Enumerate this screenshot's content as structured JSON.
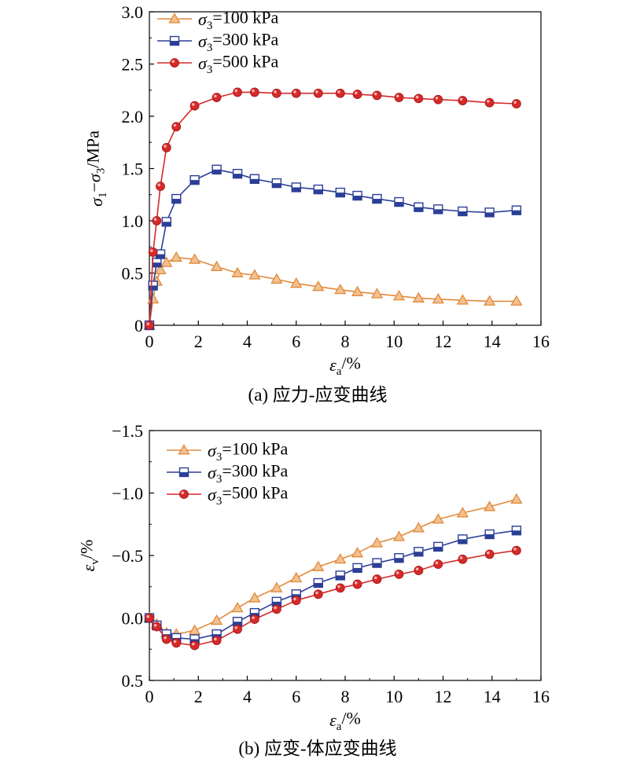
{
  "chart_data": [
    {
      "type": "line",
      "caption": "(a) 应力-应变曲线",
      "xlabel": "εa/%",
      "ylabel": "σ1−σ3/MPa",
      "xlim": [
        0,
        16
      ],
      "ylim": [
        0,
        3.0
      ],
      "y_reversed": false,
      "xticks": [
        "0",
        "2",
        "4",
        "6",
        "8",
        "10",
        "12",
        "14",
        "16"
      ],
      "yticks": [
        "0",
        "0.5",
        "1.0",
        "1.5",
        "2.0",
        "2.5",
        "3.0"
      ],
      "legend_position": "top-left",
      "series": [
        {
          "name": "σ3=100 kPa",
          "color": "#e08a3c",
          "marker": "triangle-open",
          "points": [
            [
              0,
              0
            ],
            [
              0.15,
              0.25
            ],
            [
              0.3,
              0.42
            ],
            [
              0.45,
              0.53
            ],
            [
              0.7,
              0.6
            ],
            [
              1.1,
              0.65
            ],
            [
              1.85,
              0.63
            ],
            [
              2.75,
              0.56
            ],
            [
              3.6,
              0.5
            ],
            [
              4.3,
              0.48
            ],
            [
              5.2,
              0.44
            ],
            [
              6.0,
              0.4
            ],
            [
              6.9,
              0.37
            ],
            [
              7.8,
              0.34
            ],
            [
              8.5,
              0.32
            ],
            [
              9.3,
              0.3
            ],
            [
              10.2,
              0.28
            ],
            [
              11.0,
              0.26
            ],
            [
              11.8,
              0.25
            ],
            [
              12.8,
              0.24
            ],
            [
              13.9,
              0.23
            ],
            [
              15.0,
              0.23
            ]
          ]
        },
        {
          "name": "σ3=300 kPa",
          "color": "#2b3f97",
          "marker": "square-half",
          "points": [
            [
              0,
              0
            ],
            [
              0.15,
              0.38
            ],
            [
              0.3,
              0.6
            ],
            [
              0.45,
              0.68
            ],
            [
              0.7,
              0.99
            ],
            [
              1.1,
              1.21
            ],
            [
              1.85,
              1.39
            ],
            [
              2.75,
              1.49
            ],
            [
              3.6,
              1.45
            ],
            [
              4.3,
              1.4
            ],
            [
              5.2,
              1.36
            ],
            [
              6.0,
              1.32
            ],
            [
              6.9,
              1.3
            ],
            [
              7.8,
              1.27
            ],
            [
              8.5,
              1.24
            ],
            [
              9.3,
              1.21
            ],
            [
              10.2,
              1.18
            ],
            [
              11.0,
              1.13
            ],
            [
              11.8,
              1.11
            ],
            [
              12.8,
              1.09
            ],
            [
              13.9,
              1.08
            ],
            [
              15.0,
              1.1
            ]
          ]
        },
        {
          "name": "σ3=500 kPa",
          "color": "#d42a2a",
          "marker": "circle-filled",
          "points": [
            [
              0,
              0
            ],
            [
              0.15,
              0.7
            ],
            [
              0.3,
              1.0
            ],
            [
              0.45,
              1.33
            ],
            [
              0.7,
              1.7
            ],
            [
              1.1,
              1.9
            ],
            [
              1.85,
              2.1
            ],
            [
              2.75,
              2.18
            ],
            [
              3.6,
              2.23
            ],
            [
              4.3,
              2.23
            ],
            [
              5.2,
              2.22
            ],
            [
              6.0,
              2.22
            ],
            [
              6.9,
              2.22
            ],
            [
              7.8,
              2.22
            ],
            [
              8.5,
              2.21
            ],
            [
              9.3,
              2.2
            ],
            [
              10.2,
              2.18
            ],
            [
              11.0,
              2.17
            ],
            [
              11.8,
              2.16
            ],
            [
              12.8,
              2.15
            ],
            [
              13.9,
              2.13
            ],
            [
              15.0,
              2.12
            ]
          ]
        }
      ]
    },
    {
      "type": "line",
      "caption": "(b) 应变-体应变曲线",
      "xlabel": "εa/%",
      "ylabel": "εv/%",
      "xlim": [
        0,
        16
      ],
      "ylim": [
        -1.5,
        0.5
      ],
      "y_reversed": true,
      "xticks": [
        "0",
        "2",
        "4",
        "6",
        "8",
        "10",
        "12",
        "14",
        "16"
      ],
      "yticks": [
        "−1.5",
        "−1.0",
        "−0.5",
        "0.0",
        "0.5"
      ],
      "legend_position": "top-left",
      "series": [
        {
          "name": "σ3=100 kPa",
          "color": "#e08a3c",
          "marker": "triangle-open",
          "points": [
            [
              0,
              0
            ],
            [
              0.3,
              0.05
            ],
            [
              0.7,
              0.12
            ],
            [
              1.1,
              0.13
            ],
            [
              1.85,
              0.1
            ],
            [
              2.75,
              0.02
            ],
            [
              3.6,
              -0.08
            ],
            [
              4.3,
              -0.16
            ],
            [
              5.2,
              -0.24
            ],
            [
              6.0,
              -0.32
            ],
            [
              6.9,
              -0.41
            ],
            [
              7.8,
              -0.47
            ],
            [
              8.5,
              -0.52
            ],
            [
              9.3,
              -0.6
            ],
            [
              10.2,
              -0.65
            ],
            [
              11.0,
              -0.72
            ],
            [
              11.8,
              -0.79
            ],
            [
              12.8,
              -0.84
            ],
            [
              13.9,
              -0.89
            ],
            [
              15.0,
              -0.95
            ]
          ]
        },
        {
          "name": "σ3=300 kPa",
          "color": "#2b3f97",
          "marker": "square-half",
          "points": [
            [
              0,
              0
            ],
            [
              0.3,
              0.06
            ],
            [
              0.7,
              0.13
            ],
            [
              1.1,
              0.16
            ],
            [
              1.85,
              0.17
            ],
            [
              2.75,
              0.13
            ],
            [
              3.6,
              0.03
            ],
            [
              4.3,
              -0.04
            ],
            [
              5.2,
              -0.13
            ],
            [
              6.0,
              -0.19
            ],
            [
              6.9,
              -0.28
            ],
            [
              7.8,
              -0.34
            ],
            [
              8.5,
              -0.4
            ],
            [
              9.3,
              -0.44
            ],
            [
              10.2,
              -0.48
            ],
            [
              11.0,
              -0.53
            ],
            [
              11.8,
              -0.57
            ],
            [
              12.8,
              -0.63
            ],
            [
              13.9,
              -0.67
            ],
            [
              15.0,
              -0.7
            ]
          ]
        },
        {
          "name": "σ3=500 kPa",
          "color": "#d42a2a",
          "marker": "circle-filled",
          "points": [
            [
              0,
              0
            ],
            [
              0.3,
              0.07
            ],
            [
              0.7,
              0.17
            ],
            [
              1.1,
              0.2
            ],
            [
              1.85,
              0.22
            ],
            [
              2.75,
              0.18
            ],
            [
              3.6,
              0.09
            ],
            [
              4.3,
              0.01
            ],
            [
              5.2,
              -0.07
            ],
            [
              6.0,
              -0.14
            ],
            [
              6.9,
              -0.19
            ],
            [
              7.8,
              -0.24
            ],
            [
              8.5,
              -0.27
            ],
            [
              9.3,
              -0.31
            ],
            [
              10.2,
              -0.35
            ],
            [
              11.0,
              -0.38
            ],
            [
              11.8,
              -0.43
            ],
            [
              12.8,
              -0.47
            ],
            [
              13.9,
              -0.51
            ],
            [
              15.0,
              -0.54
            ]
          ]
        }
      ]
    }
  ]
}
